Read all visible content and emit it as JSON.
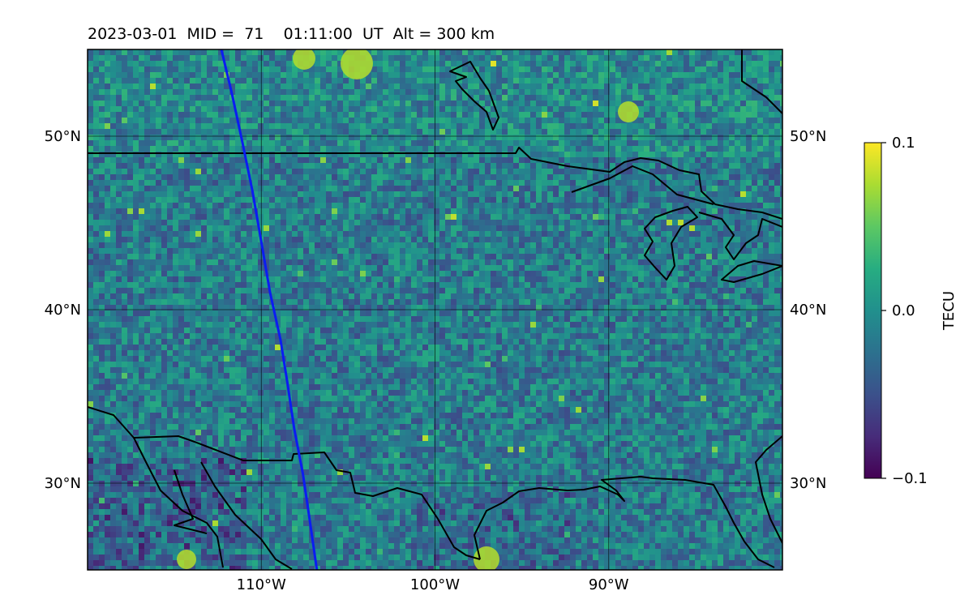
{
  "title": {
    "date": "2023-03-01",
    "mid_label": "MID =",
    "mid_value": "71",
    "time": "01:11:00",
    "time_unit": "UT",
    "alt_label": "Alt = 300 km"
  },
  "map": {
    "lon_range": [
      -120,
      -80
    ],
    "lat_range": [
      25,
      55
    ],
    "lon_ticks": [
      {
        "value": -110,
        "label": "110°W"
      },
      {
        "value": -100,
        "label": "100°W"
      },
      {
        "value": -90,
        "label": "90°W"
      }
    ],
    "lat_ticks": [
      {
        "value": 30,
        "label": "30°N"
      },
      {
        "value": 40,
        "label": "40°N"
      },
      {
        "value": 50,
        "label": "50°N"
      }
    ],
    "field": "TEC perturbation (gridded)",
    "colormap": "viridis",
    "track_color": "#0b1cf2",
    "track": [
      [
        -112.3,
        55
      ],
      [
        -111.7,
        52.5
      ],
      [
        -111.1,
        49.7
      ],
      [
        -110.5,
        46.8
      ],
      [
        -110.0,
        43.9
      ],
      [
        -109.5,
        41.0
      ],
      [
        -108.9,
        38.3
      ],
      [
        -108.5,
        35.8
      ],
      [
        -108.1,
        33.1
      ],
      [
        -107.6,
        30.5
      ],
      [
        -107.2,
        27.8
      ],
      [
        -106.8,
        25
      ]
    ]
  },
  "colorbar": {
    "label": "TECU",
    "min": -0.1,
    "max": 0.1,
    "ticks": [
      {
        "value": 0.1,
        "label": "0.1"
      },
      {
        "value": 0.0,
        "label": "0.0"
      },
      {
        "value": -0.1,
        "label": "−0.1"
      }
    ]
  }
}
